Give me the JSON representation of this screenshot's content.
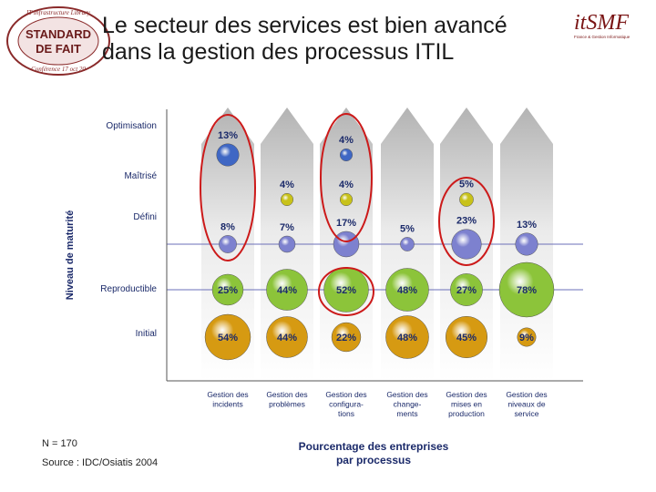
{
  "title_line1": "Le secteur des services est bien avancé",
  "title_line2": "dans la gestion des processus ITIL",
  "logo_left": {
    "text_top": "IT Infrastructure Library",
    "line1": "STANDARD",
    "line2": "DE FAIT",
    "text_bottom": "Conférence 17 oct 20"
  },
  "logo_right": {
    "brand": "itSMF",
    "tagline": "France & Gestion Informatique"
  },
  "footnote_n": "N = 170",
  "footnote_source": "Source : IDC/Osiatis 2004",
  "chart_data": {
    "type": "bubble",
    "ylabel": "Niveau de maturité",
    "xlabel": "Pourcentage des entreprises par processus",
    "levels": [
      "Optimisation",
      "Maîtrisé",
      "Défini",
      "Reproductible",
      "Initial"
    ],
    "level_colors": {
      "Optimisation": "#3f67c4",
      "Maîtrisé": "#c8c21a",
      "Défini": "#7d81cf",
      "Reproductible": "#8cc43a",
      "Initial": "#d69a12"
    },
    "processes": [
      {
        "label": "Gestion des incidents",
        "values": {
          "Optimisation": 13,
          "Défini": 8,
          "Reproductible": 25,
          "Initial": 54
        }
      },
      {
        "label": "Gestion des problèmes",
        "values": {
          "Maîtrisé": 4,
          "Défini": 7,
          "Reproductible": 44,
          "Initial": 44
        }
      },
      {
        "label": "Gestion des configura-tions",
        "values": {
          "Optimisation": 4,
          "Maîtrisé": 4,
          "Défini": 17,
          "Reproductible": 52,
          "Initial": 22
        }
      },
      {
        "label": "Gestion des change-ments",
        "values": {
          "Défini": 5,
          "Reproductible": 48,
          "Initial": 48
        }
      },
      {
        "label": "Gestion des mises en production",
        "values": {
          "Maîtrisé": 5,
          "Défini": 23,
          "Reproductible": 27,
          "Initial": 45
        }
      },
      {
        "label": "Gestion des niveaux de service",
        "values": {
          "Défini": 13,
          "Reproductible": 78,
          "Initial": 9
        }
      }
    ],
    "highlighted": [
      "Gestion des incidents|Optimisation",
      "Gestion des configura-tions|Optimisation",
      "Gestion des configura-tions|Reproductible",
      "Gestion des mises en production|Maîtrisé"
    ],
    "unit": "%"
  }
}
